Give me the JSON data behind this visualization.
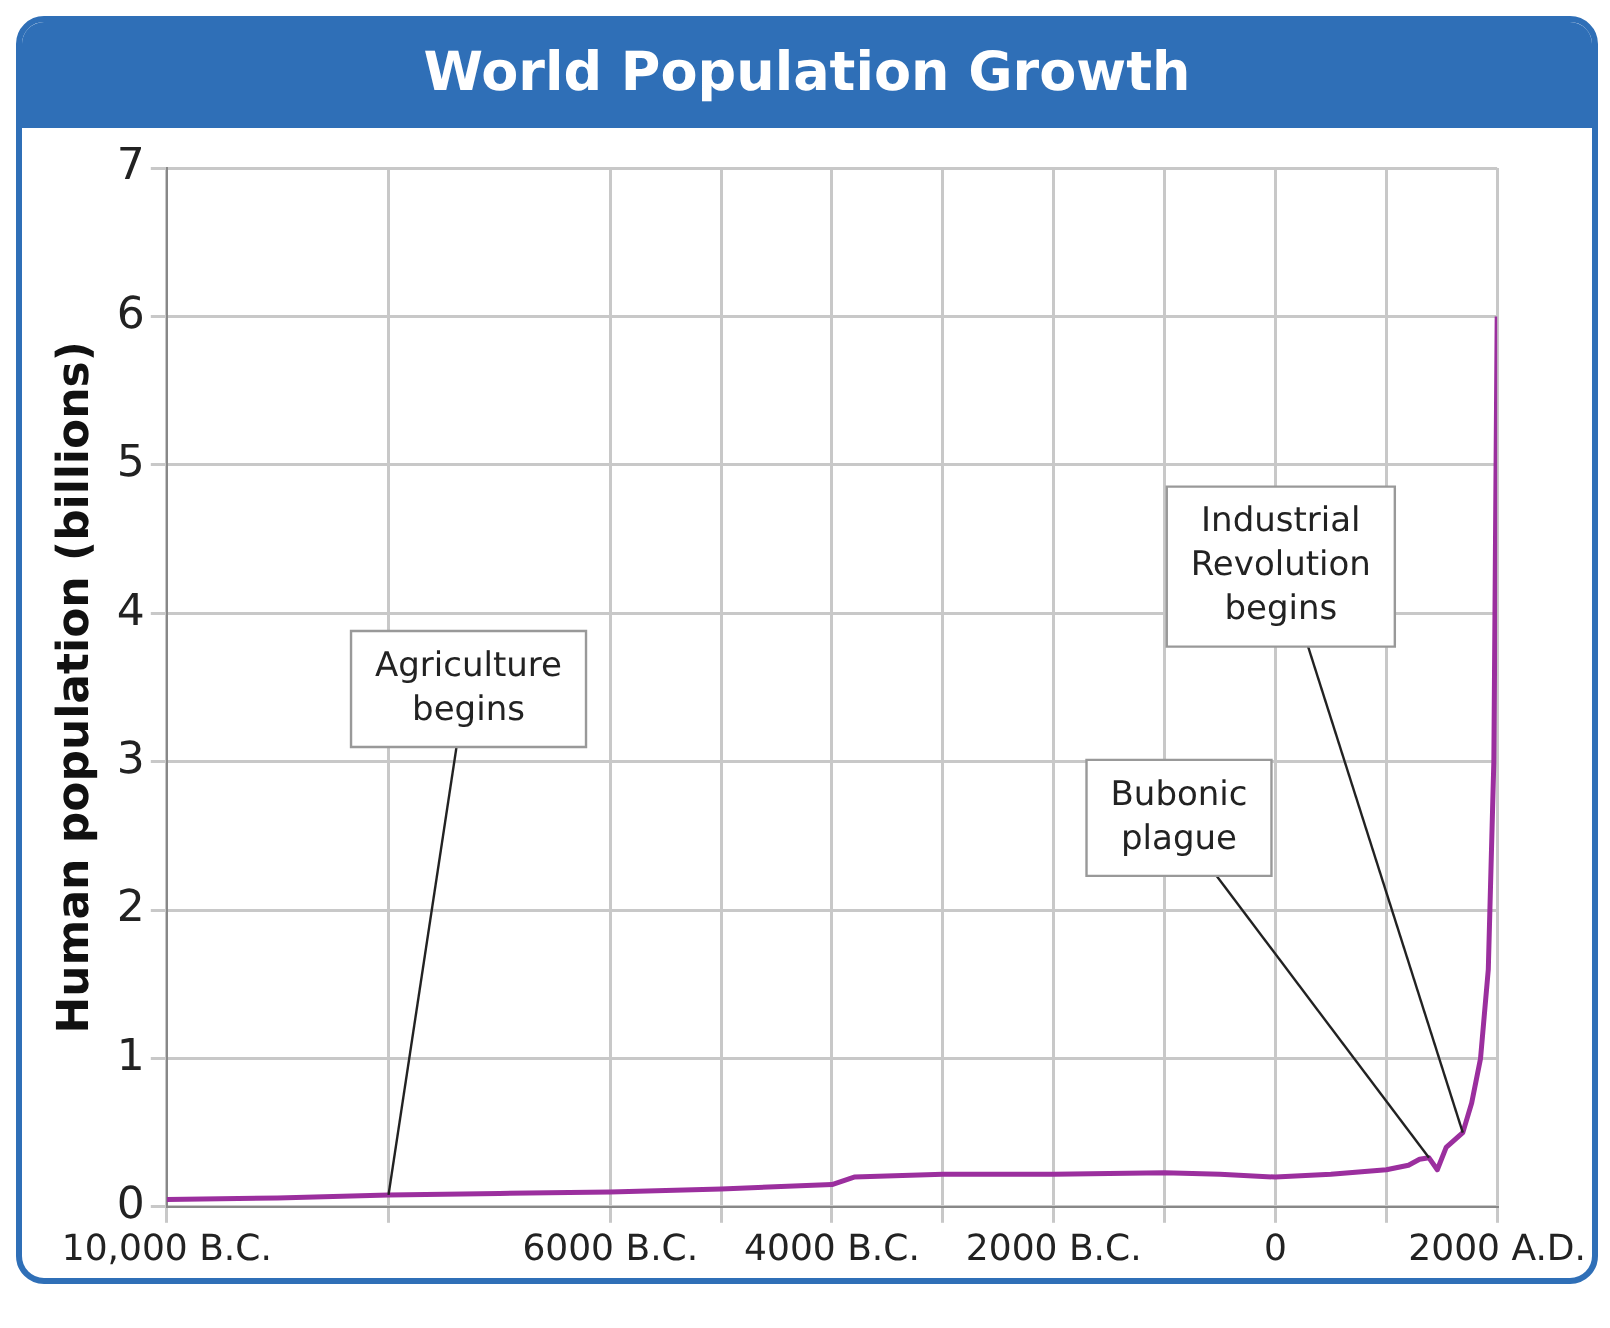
{
  "chart_data": {
    "type": "line",
    "title": "World Population Growth",
    "ylabel": "Human population (billions)",
    "x": [
      -10000,
      -9000,
      -8000,
      -7000,
      -6000,
      -5000,
      -4000,
      -3800,
      -3000,
      -2000,
      -1000,
      -500,
      0,
      500,
      1000,
      1200,
      1300,
      1385,
      1460,
      1540,
      1690,
      1770,
      1850,
      1920,
      1970,
      2000
    ],
    "values": [
      0.05,
      0.06,
      0.08,
      0.09,
      0.1,
      0.12,
      0.15,
      0.2,
      0.22,
      0.22,
      0.23,
      0.22,
      0.2,
      0.22,
      0.25,
      0.28,
      0.32,
      0.33,
      0.25,
      0.4,
      0.5,
      0.7,
      1.0,
      1.6,
      3.0,
      6.0
    ],
    "color": "#9b2f9e",
    "marker": "none",
    "xlim": [
      -10000,
      2000
    ],
    "xticks": [
      {
        "value": -10000,
        "label": "10,000 B.C."
      },
      {
        "value": -8000,
        "label": null
      },
      {
        "value": -6000,
        "label": "6000 B.C."
      },
      {
        "value": -5000,
        "label": null
      },
      {
        "value": -4000,
        "label": "4000 B.C."
      },
      {
        "value": -3000,
        "label": null
      },
      {
        "value": -2000,
        "label": "2000 B.C."
      },
      {
        "value": -1000,
        "label": null
      },
      0,
      {
        "value": 1000,
        "label": null
      },
      {
        "value": 2000,
        "label": "2000 A.D."
      }
    ],
    "ylim": [
      0,
      7
    ],
    "yticks": [
      0,
      1,
      2,
      3,
      4,
      5,
      6,
      7
    ],
    "grid": true,
    "legend": false,
    "annotations": [
      {
        "text": "Agriculture begins",
        "x": -8000,
        "y": 0.08
      },
      {
        "text": "Bubonic plague",
        "x": 1385,
        "y": 0.33
      },
      {
        "text": "Industrial Revolution begins",
        "x": 1690,
        "y": 0.5
      }
    ]
  }
}
